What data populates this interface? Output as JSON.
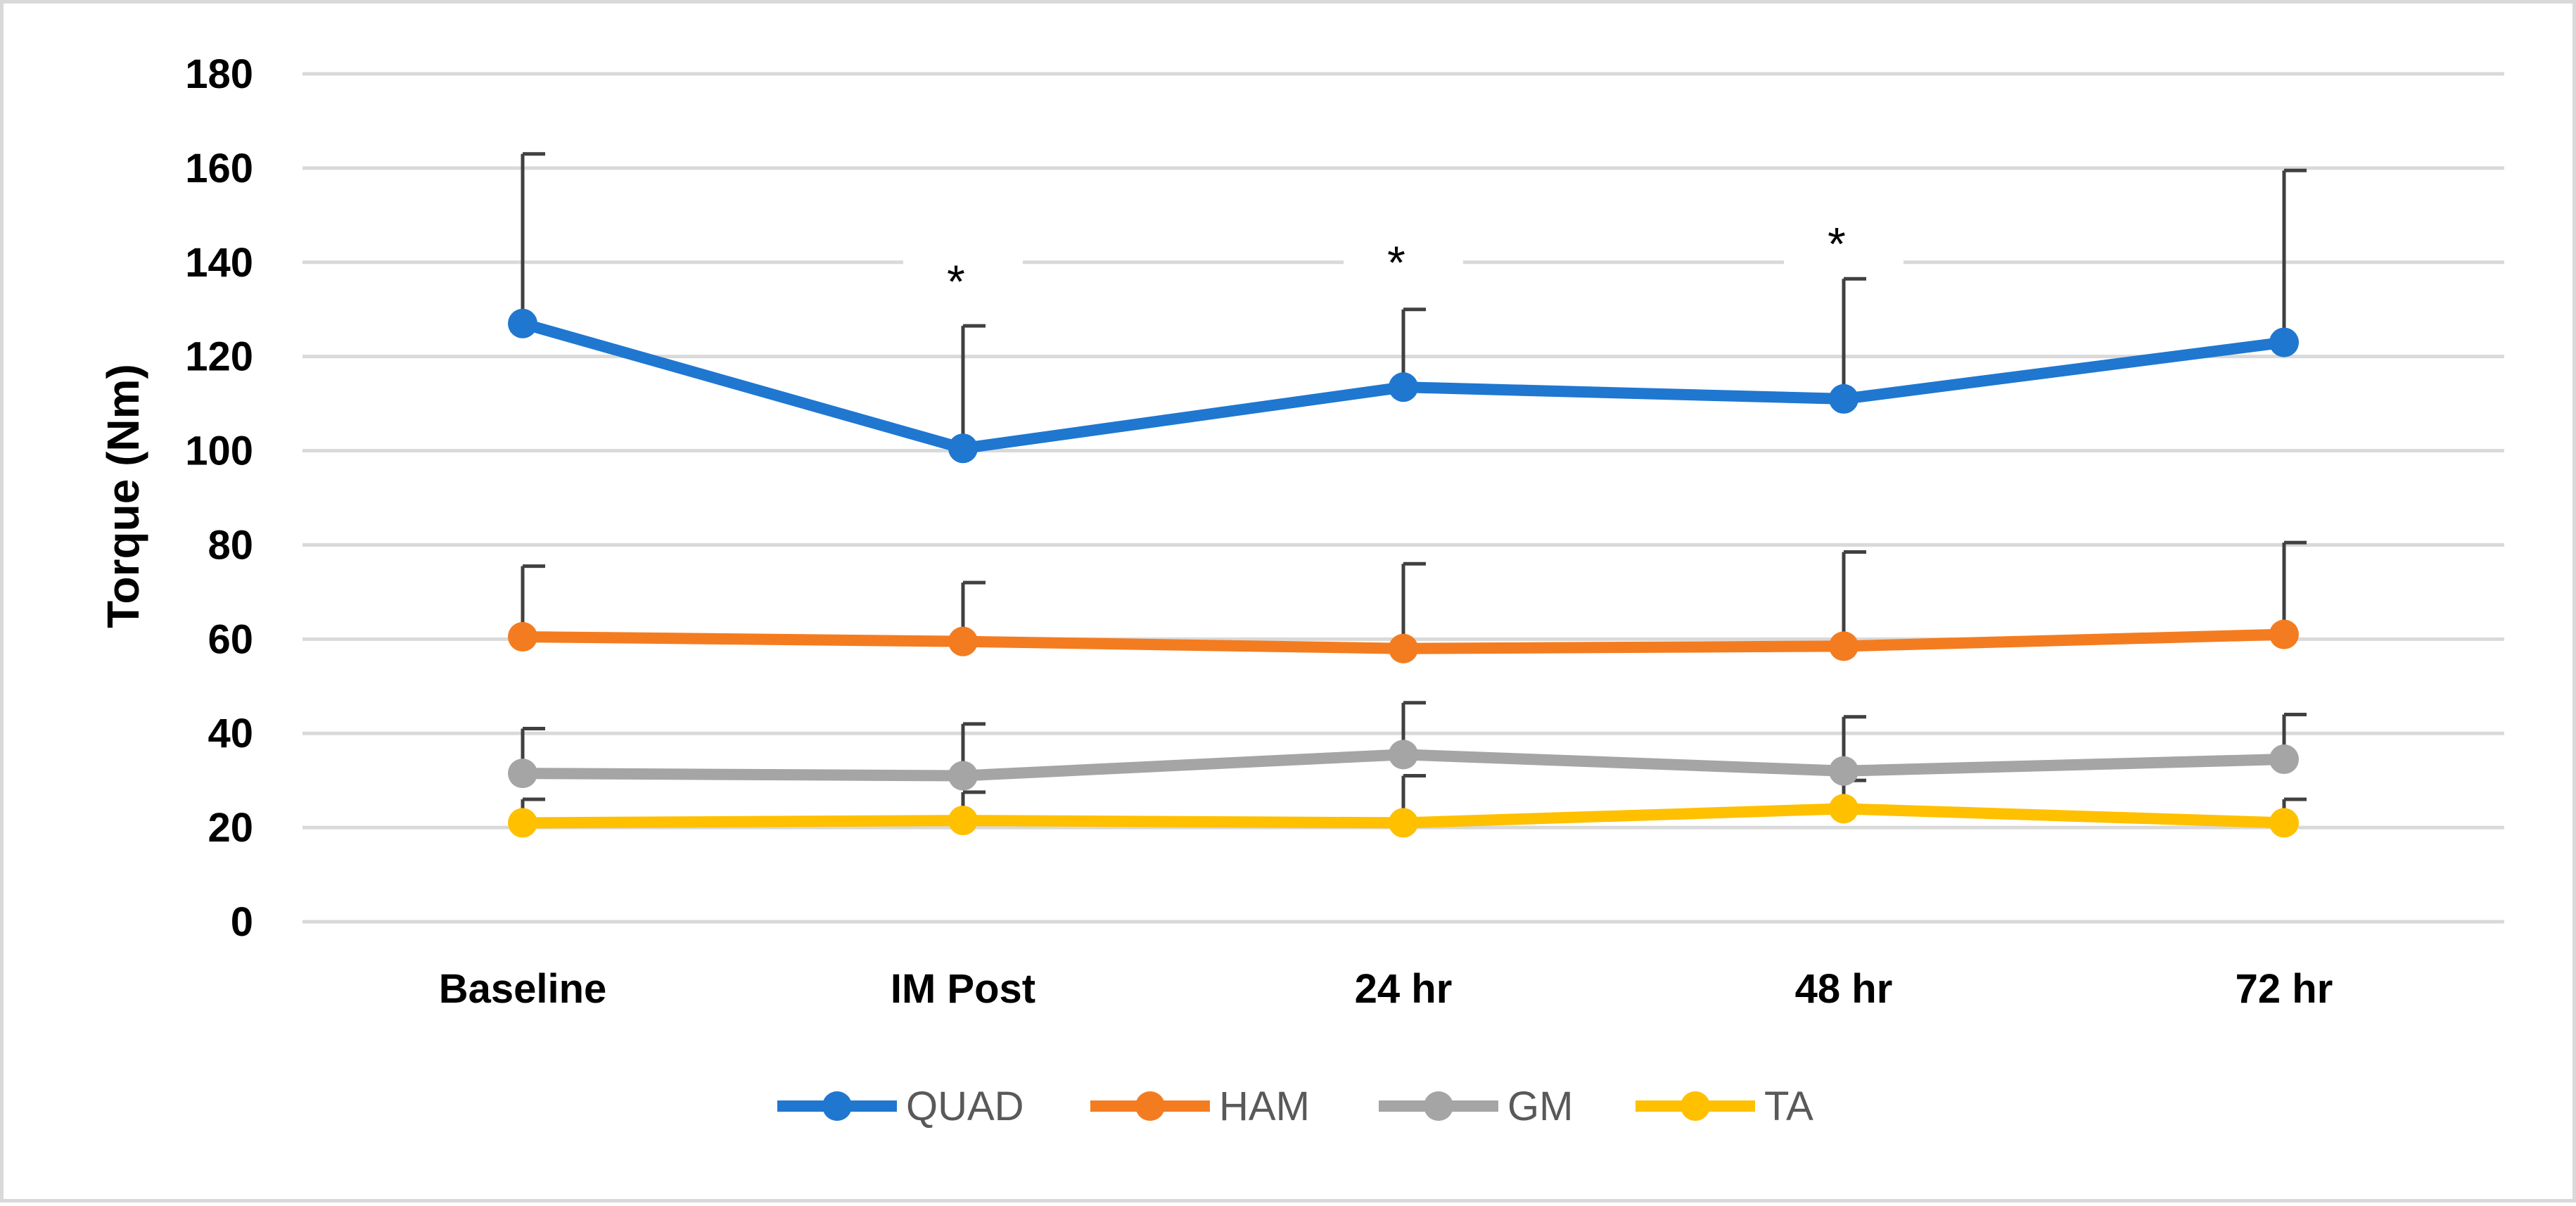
{
  "chart_data": {
    "type": "line",
    "title": "",
    "xlabel": "",
    "ylabel": "Torque (Nm)",
    "ylim": [
      0,
      180
    ],
    "yticks": [
      0,
      20,
      40,
      60,
      80,
      100,
      120,
      140,
      160,
      180
    ],
    "grid": true,
    "legend_position": "bottom",
    "categories": [
      "Baseline",
      "IM Post",
      "24 hr",
      "48 hr",
      "72 hr"
    ],
    "series": [
      {
        "name": "QUAD",
        "color": "#1f77d0",
        "values": [
          127,
          100.5,
          113.5,
          111,
          123
        ],
        "error": [
          36,
          26,
          16.5,
          25.5,
          36.5
        ]
      },
      {
        "name": "HAM",
        "color": "#f47c20",
        "values": [
          60.5,
          59.5,
          58,
          58.5,
          61
        ],
        "error": [
          15,
          12.5,
          18,
          20,
          19.5
        ]
      },
      {
        "name": "GM",
        "color": "#a5a5a5",
        "values": [
          31.5,
          31,
          35.5,
          32,
          34.5
        ],
        "error": [
          9.5,
          11,
          11,
          11.5,
          9.5
        ]
      },
      {
        "name": "TA",
        "color": "#ffc000",
        "values": [
          21,
          21.5,
          21,
          24,
          21
        ],
        "error": [
          5,
          6,
          10,
          6,
          5
        ]
      }
    ],
    "annotations": [
      {
        "text": "*",
        "category": "IM Post",
        "y": 137
      },
      {
        "text": "*",
        "category": "24 hr",
        "y": 141
      },
      {
        "text": "*",
        "category": "48 hr",
        "y": 145
      }
    ]
  }
}
